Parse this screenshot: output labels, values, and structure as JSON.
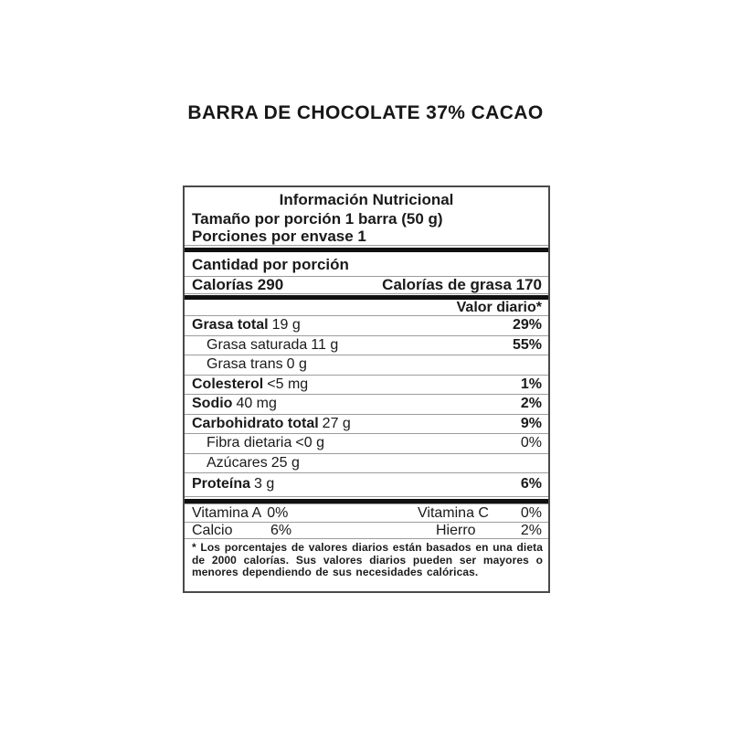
{
  "title": "BARRA DE CHOCOLATE 37% CACAO",
  "label": {
    "title": "Información Nutricional",
    "serving_size": "Tamaño por porción 1 barra (50 g)",
    "servings_per_container": "Porciones por envase 1",
    "amount_per_serving": "Cantidad por porción",
    "calories": "Calorías 290",
    "calories_from_fat": "Calorías de grasa 170",
    "daily_value_header": "Valor diario*",
    "nutrients": [
      {
        "name": "Grasa total",
        "amount": "19 g",
        "dv": "29%"
      },
      {
        "name": "Grasa saturada",
        "amount": "11 g",
        "dv": "55%"
      },
      {
        "name": "Grasa trans",
        "amount": "0 g",
        "dv": ""
      },
      {
        "name": "Colesterol",
        "amount": "<5 mg",
        "dv": "1%"
      },
      {
        "name": "Sodio",
        "amount": "40 mg",
        "dv": "2%"
      },
      {
        "name": "Carbohidrato total",
        "amount": "27 g",
        "dv": "9%"
      },
      {
        "name": "Fibra dietaria",
        "amount": "<0 g",
        "dv": "0%"
      },
      {
        "name": "Azúcares",
        "amount": "25 g",
        "dv": ""
      },
      {
        "name": "Proteína",
        "amount": "3 g",
        "dv": "6%"
      }
    ],
    "vitamins": {
      "row1": {
        "left_label": "Vitamina A",
        "left_value": "0%",
        "right_label": "Vitamina C",
        "right_value": "0%"
      },
      "row2": {
        "left_label": "Calcio",
        "left_value": "6%",
        "right_label": "Hierro",
        "right_value": "2%"
      }
    },
    "footnote": "* Los porcentajes de valores diarios están basados en una dieta de 2000 calorías.  Sus valores diarios pueden ser mayores o menores dependiendo de sus necesidades calóricas."
  },
  "colors": {
    "background": "#ffffff",
    "text": "#1a1a1a",
    "thin_line": "#9c9c9c",
    "thick_bar": "#101010",
    "box_border": "#4a4a4a"
  }
}
